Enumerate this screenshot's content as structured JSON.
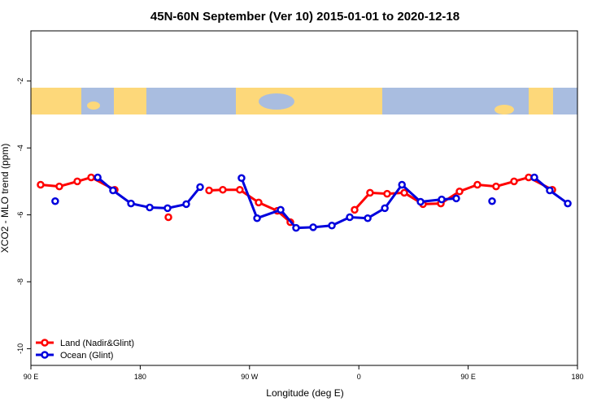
{
  "chart_data": {
    "type": "line",
    "title": "45N-60N September (Ver 10)   2015-01-01 to 2020-12-18",
    "xlabel": "Longitude (deg E)",
    "ylabel": "XCO2 - MLO trend (ppm)",
    "xlim": [
      90,
      540
    ],
    "ylim": [
      -10.5,
      -0.5
    ],
    "xticks": [
      {
        "value": 90,
        "label": "90 E"
      },
      180,
      {
        "value": 270,
        "label": "90 W"
      },
      {
        "value": 360,
        "label": "0"
      },
      {
        "value": 450,
        "label": "90 E"
      },
      {
        "value": 540,
        "label": "180"
      }
    ],
    "yticks": [
      -2,
      -4,
      -6,
      -8,
      -10
    ],
    "legend": "bottom-left",
    "series": [
      {
        "name": "Land (Nadir&Glint)",
        "color": "#ff0000",
        "x": [
          98,
          113.4,
          128.2,
          139.6,
          159,
          null,
          203.2,
          null,
          236.7,
          248,
          262,
          277.5,
          292.9,
          303.6,
          null,
          356.5,
          369.2,
          383.3,
          397.4,
          412.8,
          427.5,
          442.9,
          457.6,
          473,
          487.8,
          499.8,
          519.3
        ],
        "values": [
          -5.1,
          -5.15,
          -5.0,
          -4.88,
          -5.25,
          null,
          -6.07,
          null,
          -5.27,
          -5.25,
          -5.25,
          -5.63,
          -5.88,
          -6.22,
          null,
          -5.85,
          -5.34,
          -5.37,
          -5.34,
          -5.68,
          -5.66,
          -5.3,
          -5.1,
          -5.15,
          -5.0,
          -4.88,
          -5.25
        ]
      },
      {
        "name": "Ocean (Glint)",
        "color": "#0000dd",
        "x": [
          110,
          null,
          145,
          157.6,
          172.4,
          187.8,
          202.5,
          217.9,
          229.3,
          null,
          263.4,
          276.2,
          295.6,
          308.3,
          322.4,
          337.8,
          352.5,
          367.3,
          381.4,
          395.5,
          410.8,
          428.2,
          440.2,
          null,
          469.7,
          null,
          504.5,
          517.2,
          532
        ],
        "values": [
          -5.59,
          null,
          -4.88,
          -5.27,
          -5.66,
          -5.78,
          -5.8,
          -5.68,
          -5.17,
          null,
          -4.9,
          -6.1,
          -5.85,
          -6.39,
          -6.37,
          -6.32,
          -6.07,
          -6.1,
          -5.8,
          -5.1,
          -5.61,
          -5.54,
          -5.51,
          null,
          -5.59,
          null,
          -4.88,
          -5.27,
          -5.66
        ]
      }
    ]
  }
}
